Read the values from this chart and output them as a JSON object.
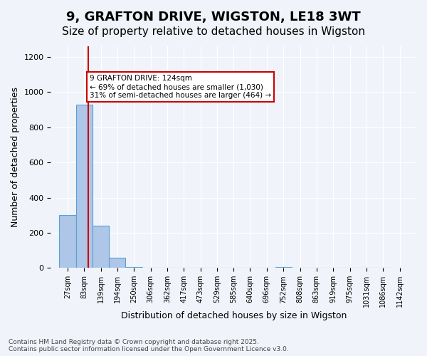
{
  "title": "9, GRAFTON DRIVE, WIGSTON, LE18 3WT",
  "subtitle": "Size of property relative to detached houses in Wigston",
  "xlabel": "Distribution of detached houses by size in Wigston",
  "ylabel": "Number of detached properties",
  "bin_labels": [
    "27sqm",
    "83sqm",
    "139sqm",
    "194sqm",
    "250sqm",
    "306sqm",
    "362sqm",
    "417sqm",
    "473sqm",
    "529sqm",
    "585sqm",
    "640sqm",
    "696sqm",
    "752sqm",
    "808sqm",
    "863sqm",
    "919sqm",
    "975sqm",
    "1031sqm",
    "1086sqm",
    "1142sqm"
  ],
  "bin_edges": [
    27,
    83,
    139,
    194,
    250,
    306,
    362,
    417,
    473,
    529,
    585,
    640,
    696,
    752,
    808,
    863,
    919,
    975,
    1031,
    1086,
    1142
  ],
  "bar_values": [
    300,
    930,
    240,
    60,
    5,
    0,
    0,
    0,
    0,
    0,
    0,
    0,
    0,
    5,
    0,
    0,
    0,
    0,
    0,
    0
  ],
  "bar_color": "#aec6e8",
  "bar_edge_color": "#5a9fd4",
  "property_size": 124,
  "ylim": [
    0,
    1260
  ],
  "yticks": [
    0,
    200,
    400,
    600,
    800,
    1000,
    1200
  ],
  "annotation_text": "9 GRAFTON DRIVE: 124sqm\n← 69% of detached houses are smaller (1,030)\n31% of semi-detached houses are larger (464) →",
  "annotation_box_color": "#ffffff",
  "annotation_border_color": "#cc0000",
  "red_line_color": "#cc0000",
  "footer_text": "Contains HM Land Registry data © Crown copyright and database right 2025.\nContains public sector information licensed under the Open Government Licence v3.0.",
  "bg_color": "#f0f4fa",
  "title_fontsize": 13,
  "subtitle_fontsize": 11,
  "label_fontsize": 9,
  "tick_fontsize": 8
}
